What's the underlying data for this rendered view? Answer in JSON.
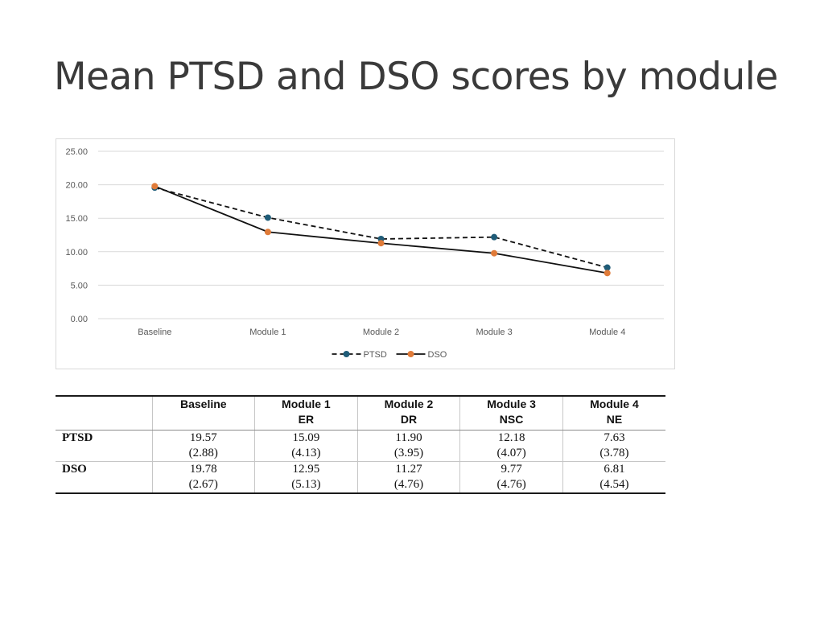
{
  "title": "Mean PTSD and DSO scores by module",
  "chart_data": {
    "type": "line",
    "categories": [
      "Baseline",
      "Module 1",
      "Module 2",
      "Module 3",
      "Module 4"
    ],
    "series": [
      {
        "name": "PTSD",
        "values": [
          19.57,
          15.09,
          11.9,
          12.18,
          7.63
        ],
        "color": "#1f5c78",
        "line_style": "dashed"
      },
      {
        "name": "DSO",
        "values": [
          19.78,
          12.95,
          11.27,
          9.77,
          6.81
        ],
        "color": "#e07b39",
        "line_style": "solid"
      }
    ],
    "ylim": [
      0,
      25
    ],
    "yticks": [
      "0.00",
      "5.00",
      "10.00",
      "15.00",
      "20.00",
      "25.00"
    ],
    "grid": true,
    "legend_position": "bottom"
  },
  "table": {
    "headers": [
      {
        "line1": "",
        "line2": ""
      },
      {
        "line1": "Baseline",
        "line2": ""
      },
      {
        "line1": "Module 1",
        "line2": "ER"
      },
      {
        "line1": "Module 2",
        "line2": "DR"
      },
      {
        "line1": "Module 3",
        "line2": "NSC"
      },
      {
        "line1": "Module 4",
        "line2": "NE"
      }
    ],
    "rows": [
      {
        "label": "PTSD",
        "cells": [
          {
            "mean": "19.57",
            "sd": "(2.88)"
          },
          {
            "mean": "15.09",
            "sd": "(4.13)"
          },
          {
            "mean": "11.90",
            "sd": "(3.95)"
          },
          {
            "mean": "12.18",
            "sd": "(4.07)"
          },
          {
            "mean": "7.63",
            "sd": "(3.78)"
          }
        ]
      },
      {
        "label": "DSO",
        "cells": [
          {
            "mean": "19.78",
            "sd": "(2.67)"
          },
          {
            "mean": "12.95",
            "sd": "(5.13)"
          },
          {
            "mean": "11.27",
            "sd": "(4.76)"
          },
          {
            "mean": "9.77",
            "sd": "(4.76)"
          },
          {
            "mean": "6.81",
            "sd": "(4.54)"
          }
        ]
      }
    ]
  }
}
